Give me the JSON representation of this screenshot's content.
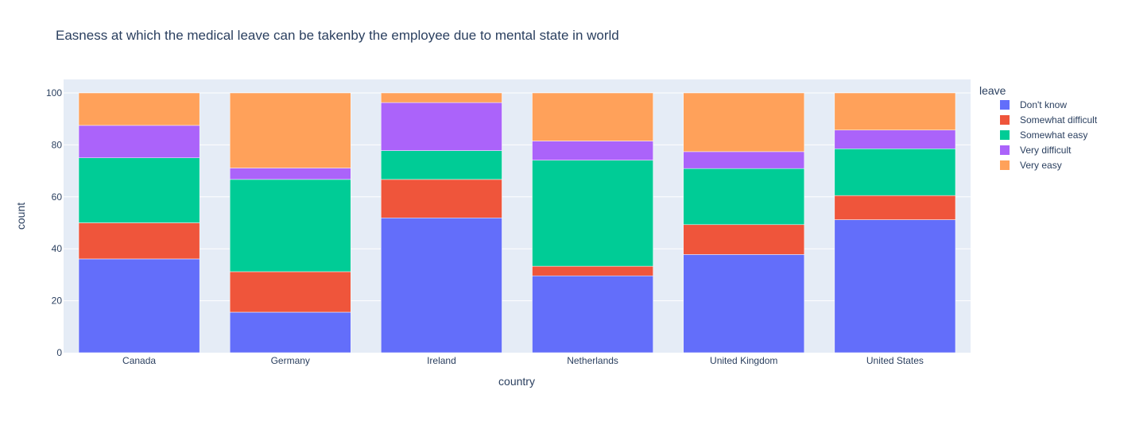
{
  "chart_data": {
    "type": "bar",
    "barmode": "stack",
    "title": "Easness at which the medical leave can be takenby the employee due to mental state in world",
    "xlabel": "country",
    "ylabel": "count",
    "ylim": [
      0,
      100
    ],
    "yticks": [
      0,
      20,
      40,
      60,
      80,
      100
    ],
    "grid": true,
    "legend_title": "leave",
    "legend_position": "right",
    "categories": [
      "Canada",
      "Germany",
      "Ireland",
      "Netherlands",
      "United Kingdom",
      "United States"
    ],
    "series": [
      {
        "name": "Don't know",
        "color": "#636EFA",
        "values": [
          36.1,
          15.6,
          51.9,
          29.6,
          37.8,
          51.2
        ]
      },
      {
        "name": "Somewhat difficult",
        "color": "#EF553B",
        "values": [
          13.9,
          15.6,
          14.8,
          3.7,
          11.5,
          9.3
        ]
      },
      {
        "name": "Somewhat easy",
        "color": "#00CC96",
        "values": [
          25.0,
          35.5,
          11.1,
          40.8,
          21.6,
          18.0
        ]
      },
      {
        "name": "Very difficult",
        "color": "#AB63FA",
        "values": [
          12.5,
          4.4,
          18.5,
          7.4,
          6.5,
          7.2
        ]
      },
      {
        "name": "Very easy",
        "color": "#FFA15A",
        "values": [
          12.5,
          28.9,
          3.7,
          18.5,
          22.6,
          14.3
        ]
      }
    ]
  }
}
